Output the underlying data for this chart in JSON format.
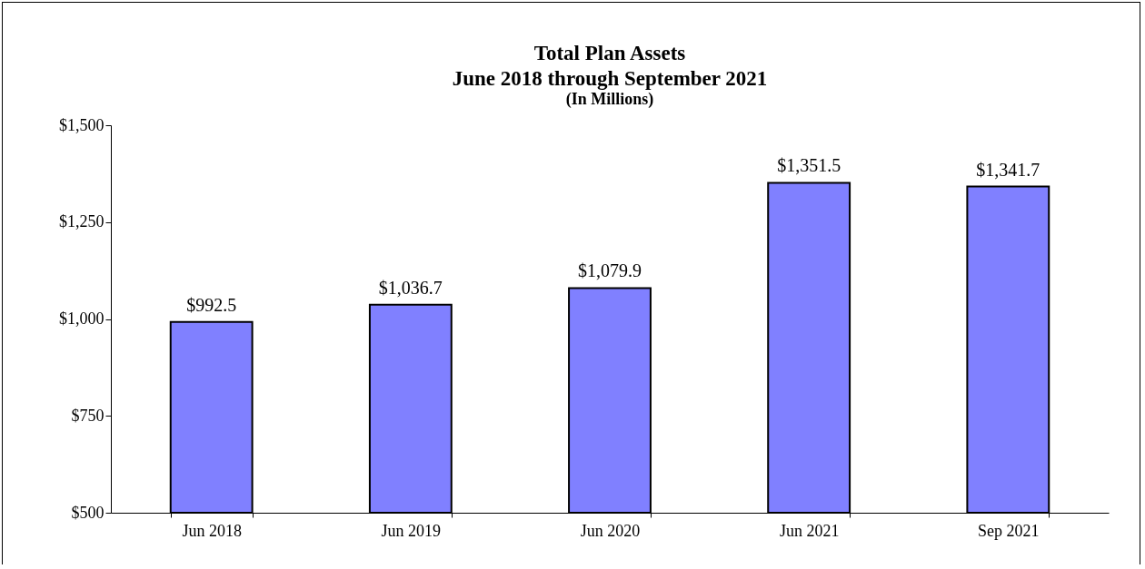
{
  "chart_data": {
    "type": "bar",
    "title": "Total Plan Assets",
    "subtitle": "June 2018 through September 2021",
    "annotations": [
      "(In Millions)"
    ],
    "categories": [
      "Jun 2018",
      "Jun 2019",
      "Jun 2020",
      "Jun 2021",
      "Sep 2021"
    ],
    "values": [
      992.5,
      1036.7,
      1079.9,
      1351.5,
      1341.7
    ],
    "value_labels": [
      "$992.5",
      "$1,036.7",
      "$1,079.9",
      "$1,351.5",
      "$1,341.7"
    ],
    "color": "#8080ff",
    "ylim": [
      500,
      1500
    ],
    "yticks": [
      {
        "value": 500,
        "label": "$500"
      },
      {
        "value": 750,
        "label": "$750"
      },
      {
        "value": 1000,
        "label": "$1,000"
      },
      {
        "value": 1250,
        "label": "$1,250"
      },
      {
        "value": 1500,
        "label": "$1,500"
      }
    ],
    "grid": false
  }
}
